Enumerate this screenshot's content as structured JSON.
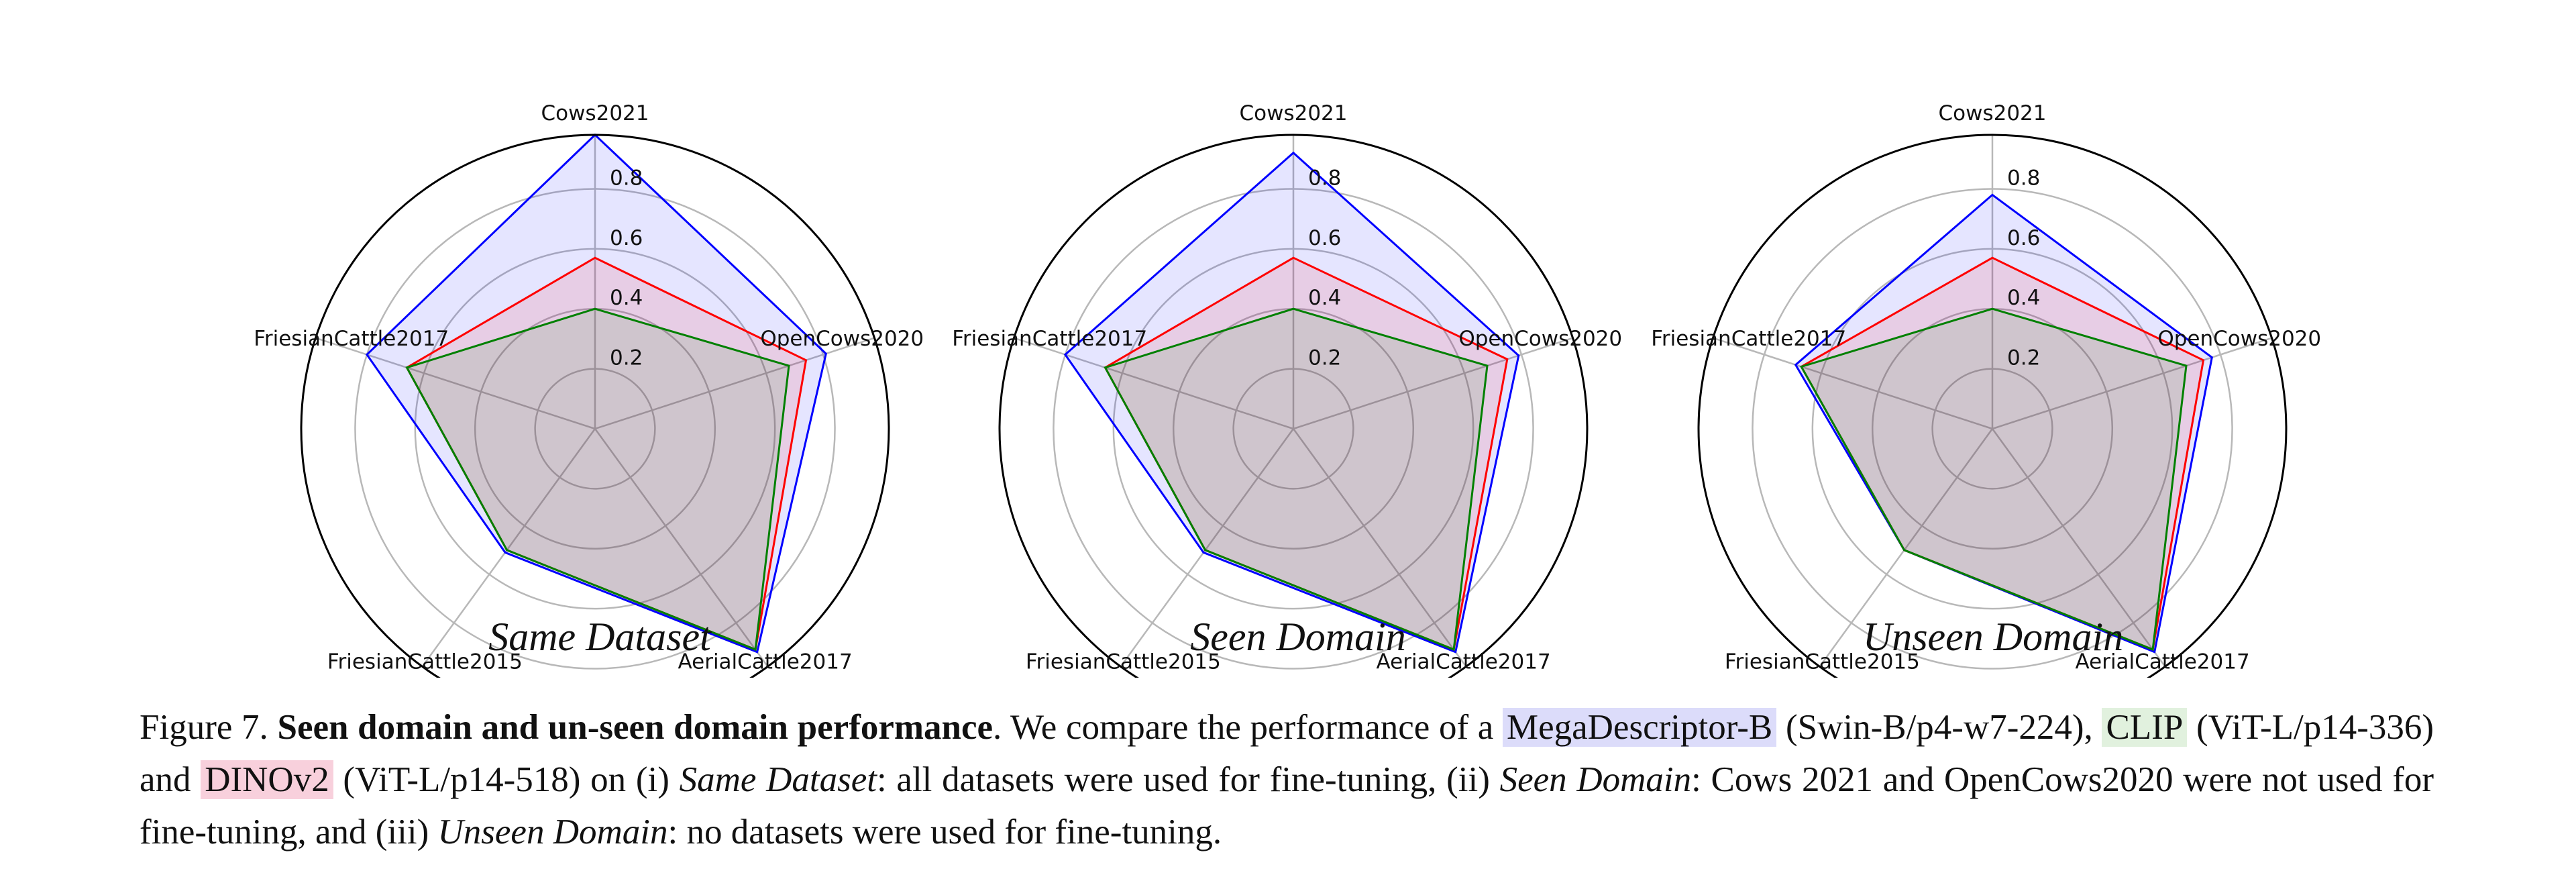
{
  "chart_data": [
    {
      "type": "radar",
      "title": "Same Dataset",
      "categories": [
        "Cows2021",
        "OpenCows2020",
        "AerialCattle2017",
        "FriesianCattle2015",
        "FriesianCattle2017"
      ],
      "rticks": [
        "0.2",
        "0.4",
        "0.6",
        "0.8"
      ],
      "rlim": [
        0,
        0.98
      ],
      "grid": true,
      "series": [
        {
          "model": "MegaDescriptor-B",
          "color": "#0000ff",
          "values": [
            0.98,
            0.81,
            0.92,
            0.51,
            0.8
          ]
        },
        {
          "model": "DINOv2",
          "color": "#ff0000",
          "values": [
            0.57,
            0.74,
            0.91,
            0.5,
            0.66
          ]
        },
        {
          "model": "CLIP",
          "color": "#008000",
          "values": [
            0.4,
            0.68,
            0.91,
            0.5,
            0.66
          ]
        }
      ]
    },
    {
      "type": "radar",
      "title": "Seen Domain",
      "categories": [
        "Cows2021",
        "OpenCows2020",
        "AerialCattle2017",
        "FriesianCattle2015",
        "FriesianCattle2017"
      ],
      "rticks": [
        "0.2",
        "0.4",
        "0.6",
        "0.8"
      ],
      "rlim": [
        0,
        0.98
      ],
      "grid": true,
      "series": [
        {
          "model": "MegaDescriptor-B",
          "color": "#0000ff",
          "values": [
            0.92,
            0.79,
            0.92,
            0.51,
            0.8
          ]
        },
        {
          "model": "DINOv2",
          "color": "#ff0000",
          "values": [
            0.57,
            0.75,
            0.91,
            0.5,
            0.66
          ]
        },
        {
          "model": "CLIP",
          "color": "#008000",
          "values": [
            0.4,
            0.68,
            0.91,
            0.5,
            0.66
          ]
        }
      ]
    },
    {
      "type": "radar",
      "title": "Unseen Domain",
      "categories": [
        "Cows2021",
        "OpenCows2020",
        "AerialCattle2017",
        "FriesianCattle2015",
        "FriesianCattle2017"
      ],
      "rticks": [
        "0.2",
        "0.4",
        "0.6",
        "0.8"
      ],
      "rlim": [
        0,
        0.98
      ],
      "grid": true,
      "series": [
        {
          "model": "MegaDescriptor-B",
          "color": "#0000ff",
          "values": [
            0.78,
            0.77,
            0.92,
            0.5,
            0.69
          ]
        },
        {
          "model": "DINOv2",
          "color": "#ff0000",
          "values": [
            0.57,
            0.74,
            0.91,
            0.5,
            0.67
          ]
        },
        {
          "model": "CLIP",
          "color": "#008000",
          "values": [
            0.4,
            0.68,
            0.91,
            0.5,
            0.67
          ]
        }
      ]
    }
  ],
  "caption": {
    "label": "Figure 7.",
    "bold_title": "Seen domain and un-seen domain performance",
    "t1": ". We compare the performance of a ",
    "mega": "MegaDescriptor-B",
    "t2": " (Swin-B/p4-w7-224), ",
    "clip": "CLIP",
    "t3": " (ViT-L/p14-336) and ",
    "dino": "DINOv2",
    "t4": " (ViT-L/p14-518) on (i) ",
    "same": "Same Dataset",
    "t5": ": all datasets were used for fine-tuning, (ii) ",
    "seen": "Seen Domain",
    "t6": ": Cows 2021 and OpenCows2020 were not used for fine-tuning, and (iii) ",
    "unseen": "Unseen Domain",
    "t7": ": no datasets were used for fine-tuning.",
    "highlight_colors": {
      "mega": "#dcdcfa",
      "clip": "#e1f1de",
      "dino": "#f8d0dc"
    }
  }
}
